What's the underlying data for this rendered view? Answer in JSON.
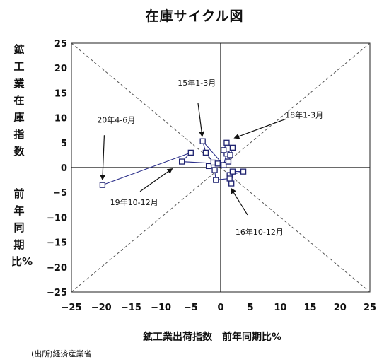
{
  "chart_data": {
    "type": "scatter",
    "title": "在庫サイクル図",
    "xlabel": "鉱工業出荷指数　前年同期比%",
    "ylabel_top": "鉱工業在庫指数",
    "ylabel_bottom": "前年同期比%",
    "xlim": [
      -25,
      25
    ],
    "ylim": [
      -25,
      25
    ],
    "xticks": [
      -25,
      -20,
      -15,
      -10,
      -5,
      0,
      5,
      10,
      15,
      20,
      25
    ],
    "yticks": [
      -25,
      -20,
      -15,
      -10,
      -5,
      0,
      5,
      10,
      15,
      20,
      25
    ],
    "grid": false,
    "diagonals": true,
    "points": [
      {
        "x": 1.5,
        "y": -1.5
      },
      {
        "x": 3.8,
        "y": -0.8
      },
      {
        "x": 2.0,
        "y": -0.8
      },
      {
        "x": 1.8,
        "y": -3.2
      },
      {
        "x": 1.5,
        "y": -2.2
      },
      {
        "x": -0.8,
        "y": -2.5
      },
      {
        "x": -1.0,
        "y": -0.5
      },
      {
        "x": -2.0,
        "y": 0.3
      },
      {
        "x": -1.2,
        "y": 1.0
      },
      {
        "x": -2.5,
        "y": 3.0
      },
      {
        "x": -3.0,
        "y": 5.3
      },
      {
        "x": 0.5,
        "y": 0.5
      },
      {
        "x": 1.0,
        "y": 2.8
      },
      {
        "x": 0.5,
        "y": 3.5
      },
      {
        "x": 1.0,
        "y": 5.0
      },
      {
        "x": 2.0,
        "y": 4.0
      },
      {
        "x": 1.6,
        "y": 2.5
      },
      {
        "x": 1.3,
        "y": 1.2
      },
      {
        "x": -0.5,
        "y": 0.8
      },
      {
        "x": -6.5,
        "y": 1.2
      },
      {
        "x": -5.0,
        "y": 3.0
      },
      {
        "x": -19.8,
        "y": -3.5
      }
    ],
    "annotations": [
      {
        "text": "20年4-6月",
        "x": -17.5,
        "y": 9.0
      },
      {
        "text": "15年1-3月",
        "x": -4.0,
        "y": 16.5
      },
      {
        "text": "18年1-3月",
        "x": 14.0,
        "y": 10.0
      },
      {
        "text": "19年10-12月",
        "x": -14.5,
        "y": -7.5
      },
      {
        "text": "16年10-12月",
        "x": 6.5,
        "y": -13.5
      }
    ],
    "arrows": [
      {
        "from": [
          -19.5,
          6.5
        ],
        "to": [
          -19.8,
          -2.3
        ]
      },
      {
        "from": [
          -3.8,
          13.0
        ],
        "to": [
          -3.1,
          6.4
        ]
      },
      {
        "from": [
          11.0,
          9.8
        ],
        "to": [
          2.4,
          6.0
        ]
      },
      {
        "from": [
          -13.5,
          -4.8
        ],
        "to": [
          -8.2,
          -0.3
        ]
      },
      {
        "from": [
          4.5,
          -9.5
        ],
        "to": [
          1.8,
          -4.3
        ]
      }
    ]
  },
  "source": "(出所)経済産業省"
}
